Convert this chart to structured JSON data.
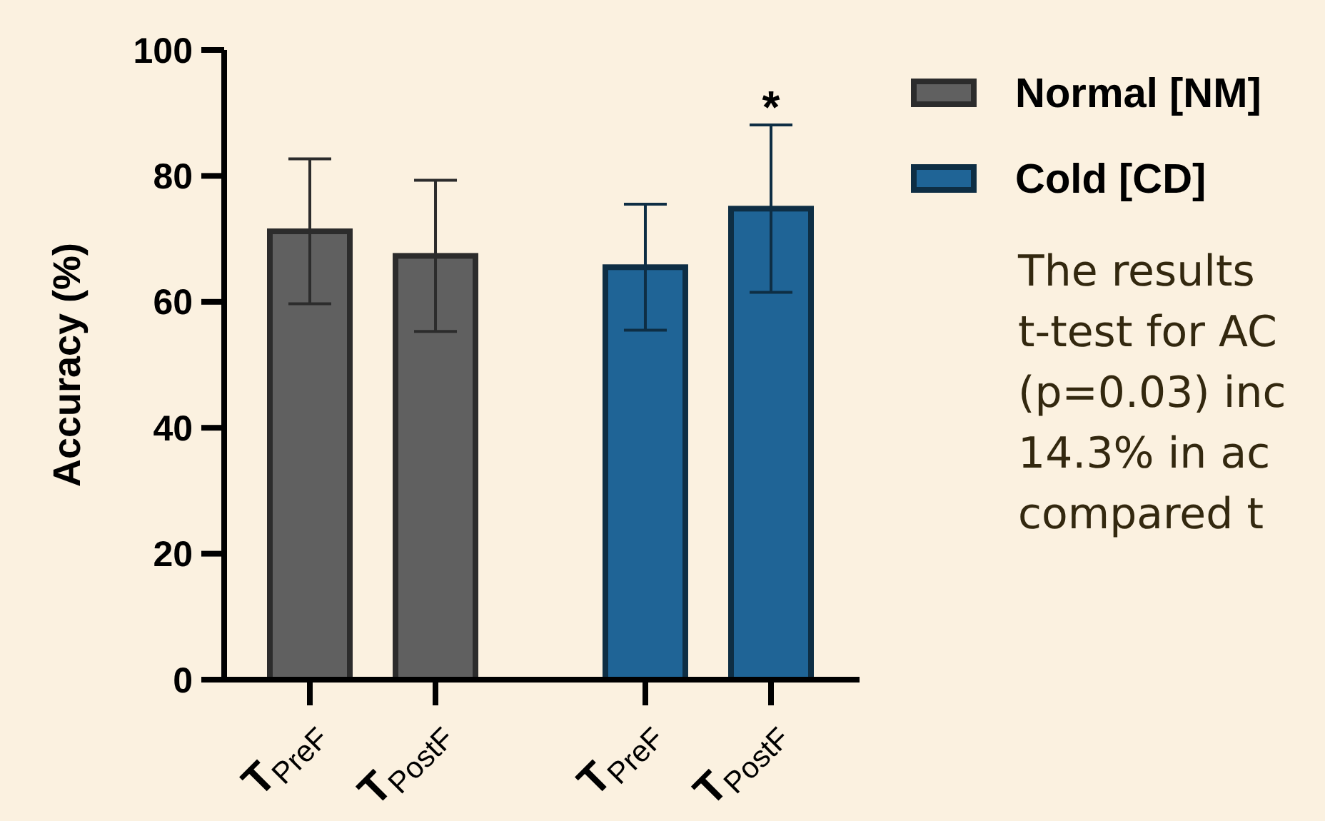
{
  "chart_data": {
    "type": "bar",
    "ylabel": "Accuracy (%)",
    "categories": [
      "T$_{PreF}$",
      "T$_{PostF}$",
      "T$_{PreF}$",
      "T$_{PostF}$"
    ],
    "series": [
      {
        "name": "Normal [NM]",
        "color": "#606060",
        "values": [
          71.2,
          67.3,
          null,
          null
        ],
        "errors": [
          11.5,
          12,
          null,
          null
        ]
      },
      {
        "name": "Cold [CD]",
        "color": "#1f6496",
        "values": [
          null,
          null,
          65.5,
          74.8
        ],
        "errors": [
          null,
          null,
          10,
          13.3
        ]
      }
    ],
    "ylim": [
      0,
      100
    ],
    "yticks": [
      0,
      20,
      40,
      60,
      80,
      100
    ],
    "grid": false,
    "legend": "top right",
    "annotations": [
      "*",
      "The results",
      "t-test for AC",
      "(p=0.03) inc",
      "14.3% in ac",
      "compared t"
    ]
  }
}
